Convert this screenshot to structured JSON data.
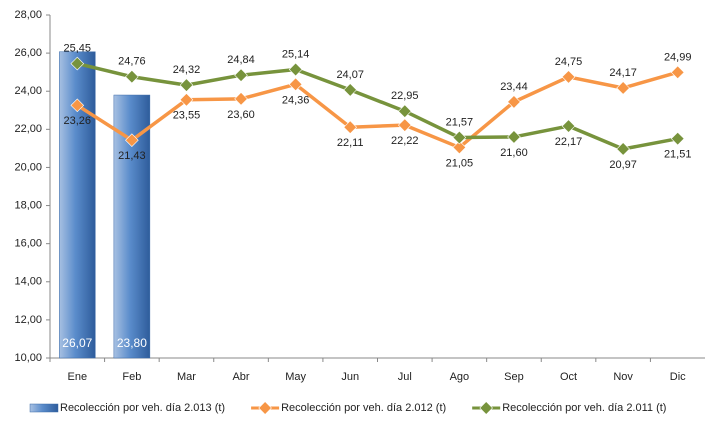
{
  "chart_data": {
    "type": "combo",
    "categories": [
      "Ene",
      "Feb",
      "Mar",
      "Abr",
      "May",
      "Jun",
      "Jul",
      "Ago",
      "Sep",
      "Oct",
      "Nov",
      "Dic"
    ],
    "series": [
      {
        "name": "Recolección por veh. día 2.013 (t)",
        "type": "bar",
        "color": "#4f81bd",
        "values": [
          26.07,
          23.8,
          null,
          null,
          null,
          null,
          null,
          null,
          null,
          null,
          null,
          null
        ],
        "value_labels": [
          "26,07",
          "23,80",
          null,
          null,
          null,
          null,
          null,
          null,
          null,
          null,
          null,
          null
        ]
      },
      {
        "name": "Recolección por veh. día 2.012 (t)",
        "type": "line",
        "color": "#f79646",
        "values": [
          23.26,
          21.43,
          23.55,
          23.6,
          24.36,
          22.11,
          22.22,
          21.05,
          23.44,
          24.75,
          24.17,
          24.99
        ],
        "value_labels": [
          "23,26",
          "21,43",
          "23,55",
          "23,60",
          "24,36",
          "22,11",
          "22,22",
          "21,05",
          "23,44",
          "24,75",
          "24,17",
          "24,99"
        ]
      },
      {
        "name": "Recolección por veh. día 2.011 (t)",
        "type": "line",
        "color": "#77933c",
        "values": [
          25.45,
          24.76,
          24.32,
          24.84,
          25.14,
          24.07,
          22.95,
          21.57,
          21.6,
          22.17,
          20.97,
          21.51
        ],
        "value_labels": [
          "25,45",
          "24,76",
          "24,32",
          "24,84",
          "25,14",
          "24,07",
          "22,95",
          "21,57",
          "21,60",
          "22,17",
          "20,97",
          "21,51"
        ]
      }
    ],
    "ylim": [
      10,
      28
    ],
    "yticks": [
      {
        "value": 10,
        "label": "10,00"
      },
      {
        "value": 12,
        "label": "12,00"
      },
      {
        "value": 14,
        "label": "14,00"
      },
      {
        "value": 16,
        "label": "16,00"
      },
      {
        "value": 18,
        "label": "18,00"
      },
      {
        "value": 20,
        "label": "20,00"
      },
      {
        "value": 22,
        "label": "22,00"
      },
      {
        "value": 24,
        "label": "24,00"
      },
      {
        "value": 26,
        "label": "26,00"
      },
      {
        "value": 28,
        "label": "28,00"
      }
    ],
    "grid": false,
    "legend": "bottom"
  }
}
